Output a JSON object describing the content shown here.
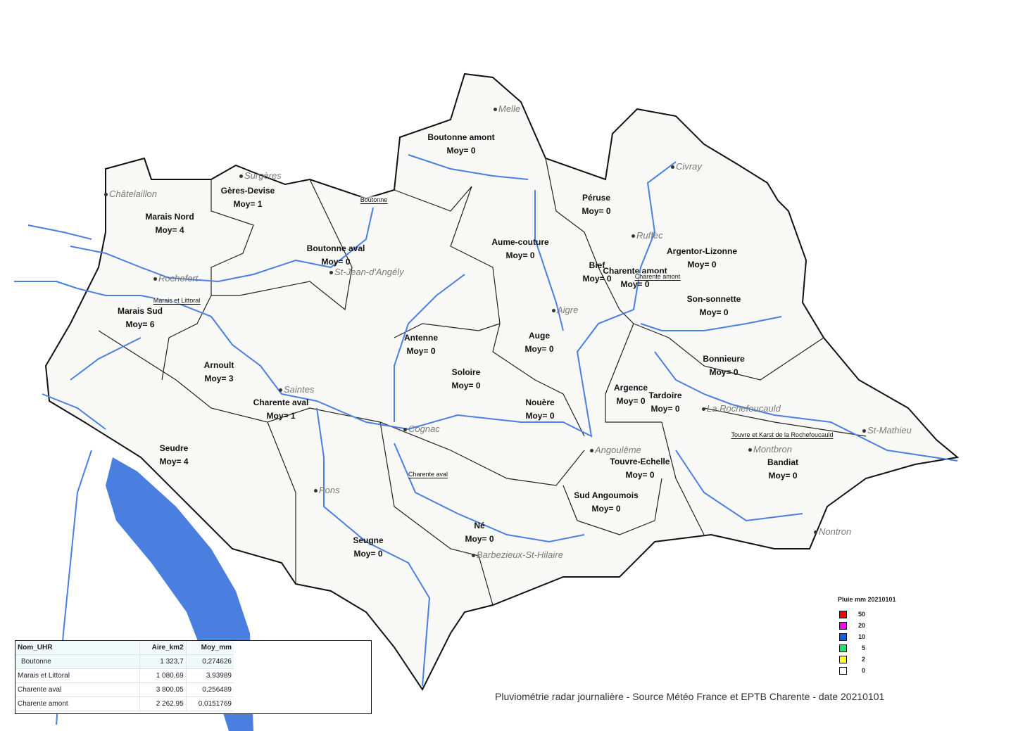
{
  "map": {
    "caption": "Pluviométrie radar journalière - Source Météo France et EPTB Charente - date 20210101",
    "colors": {
      "river": "#4a7fe0",
      "sea": "#4a7fe0",
      "outline": "#111111"
    },
    "basins": [
      {
        "name": "Boutonne amont",
        "moy": "Moy= 0"
      },
      {
        "name": "Gères-Devise",
        "moy": "Moy= 1"
      },
      {
        "name": "Marais Nord",
        "moy": "Moy= 4"
      },
      {
        "name": "Boutonne aval",
        "moy": "Moy= 0"
      },
      {
        "name": "Péruse",
        "moy": "Moy= 0"
      },
      {
        "name": "Aume-couture",
        "moy": "Moy= 0"
      },
      {
        "name": "Argentor-Lizonne",
        "moy": "Moy= 0"
      },
      {
        "name": "Bief",
        "moy": "Moy= 0"
      },
      {
        "name": "Charente amont",
        "moy": "Moy= 0"
      },
      {
        "name": "Son-sonnette",
        "moy": "Moy= 0"
      },
      {
        "name": "Marais Sud",
        "moy": "Moy= 6"
      },
      {
        "name": "Antenne",
        "moy": "Moy= 0"
      },
      {
        "name": "Auge",
        "moy": "Moy= 0"
      },
      {
        "name": "Soloire",
        "moy": "Moy= 0"
      },
      {
        "name": "Bonnieure",
        "moy": "Moy= 0"
      },
      {
        "name": "Arnoult",
        "moy": "Moy= 3"
      },
      {
        "name": "Argence",
        "moy": "Moy= 0"
      },
      {
        "name": "Tardoire",
        "moy": "Moy= 0"
      },
      {
        "name": "Charente aval",
        "moy": "Moy= 1"
      },
      {
        "name": "Nouère",
        "moy": "Moy= 0"
      },
      {
        "name": "Touvre-Echelle",
        "moy": "Moy= 0"
      },
      {
        "name": "Bandiat",
        "moy": "Moy= 0"
      },
      {
        "name": "Seudre",
        "moy": "Moy= 4"
      },
      {
        "name": "Sud Angoumois",
        "moy": "Moy= 0"
      },
      {
        "name": "Né",
        "moy": "Moy= 0"
      },
      {
        "name": "Seugne",
        "moy": "Moy= 0"
      }
    ],
    "towns": [
      "Melle",
      "Surgères",
      "Châtelaillon",
      "Civray",
      "Ruffec",
      "St-Jean-d'Angély",
      "Rochefort",
      "Aigre",
      "Saintes",
      "La Rochefoucauld",
      "Cognac",
      "St-Mathieu",
      "Angoulême",
      "Montbron",
      "Pons",
      "Nontron",
      "Barbezieux-St-Hilaire"
    ],
    "uhr_labels": [
      "Boutonne",
      "Marais et Littoral",
      "Charente amont",
      "Charente aval",
      "Touvre et Karst de la Rochefoucauld"
    ]
  },
  "legend": {
    "title": "Pluie mm 20210101",
    "items": [
      {
        "value": "50",
        "color": "#ff0000"
      },
      {
        "value": "20",
        "color": "#ff00ff"
      },
      {
        "value": "10",
        "color": "#1060e0"
      },
      {
        "value": "5",
        "color": "#20e070"
      },
      {
        "value": "2",
        "color": "#ffff20"
      },
      {
        "value": "0",
        "color": "#ffffff"
      }
    ]
  },
  "table": {
    "headers": [
      "Nom_UHR",
      "Aire_km2",
      "Moy_mm"
    ],
    "rows": [
      [
        "Boutonne",
        "1 323,7",
        "0,274626"
      ],
      [
        "Marais et Littoral",
        "1 080,69",
        "3,93989"
      ],
      [
        "Charente aval",
        "3 800,05",
        "0,256489"
      ],
      [
        "Charente amont",
        "2 262,95",
        "0,0151769"
      ]
    ]
  }
}
